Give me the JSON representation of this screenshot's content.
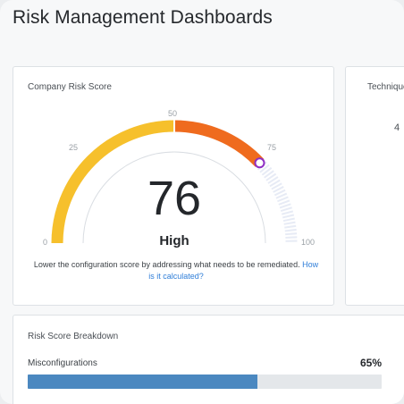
{
  "page": {
    "title": "Risk Management Dashboards"
  },
  "risk_card": {
    "title": "Company Risk Score",
    "score": 76,
    "score_text": "76",
    "level": "High",
    "gauge_min": 0,
    "gauge_max": 100,
    "ticks": {
      "t0": "0",
      "t25": "25",
      "t50": "50",
      "t75": "75",
      "t100": "100"
    },
    "description": "Lower the configuration score by addressing what needs to be remediated.",
    "link_text": "How is it calculated?",
    "colors": {
      "start": "#f6c02c",
      "mid": "#f4a024",
      "end": "#ef6b1e",
      "marker": "#8e2ec4",
      "track": "#e7ebf5"
    }
  },
  "side_card": {
    "title": "Techniques",
    "value": "4"
  },
  "breakdown_card": {
    "title": "Risk Score Breakdown",
    "items": [
      {
        "label": "Misconfigurations",
        "percent_text": "65%",
        "fraction": 0.65,
        "color": "#4b88c0"
      }
    ]
  }
}
